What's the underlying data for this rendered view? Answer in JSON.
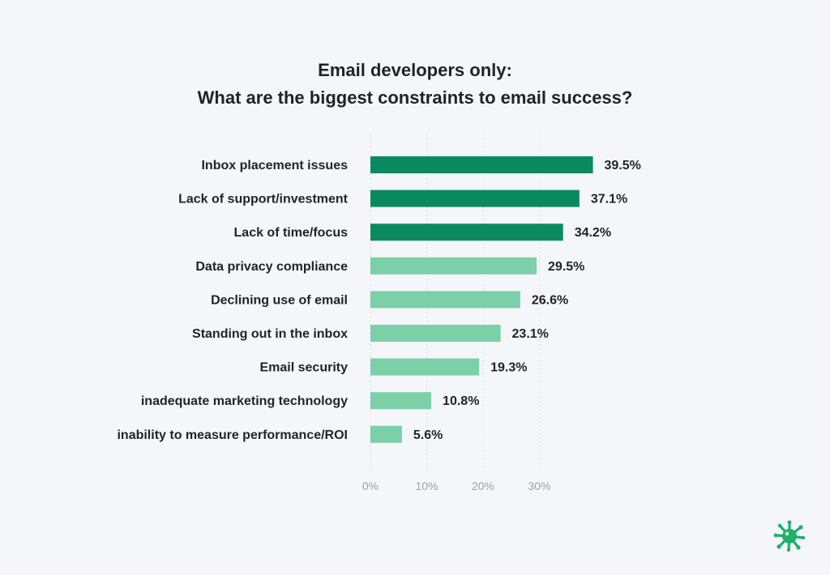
{
  "title_line1": "Email developers only:",
  "title_line2": "What are the biggest constraints to email success?",
  "colors": {
    "highlight": "#0b8a60",
    "normal": "#7bd0a7",
    "logo": "#1fb06a"
  },
  "icons": {
    "logo": "splat-logo-icon"
  },
  "chart_data": {
    "type": "bar",
    "orientation": "horizontal",
    "categories": [
      "Inbox placement issues",
      "Lack of support/investment",
      "Lack of time/focus",
      "Data privacy compliance",
      "Declining use of email",
      "Standing out in the inbox",
      "Email security",
      "inadequate marketing technology",
      "inability to measure performance/ROI"
    ],
    "values": [
      39.5,
      37.1,
      34.2,
      29.5,
      26.6,
      23.1,
      19.3,
      10.8,
      5.6
    ],
    "value_labels": [
      "39.5%",
      "37.1%",
      "34.2%",
      "29.5%",
      "26.6%",
      "23.1%",
      "19.3%",
      "10.8%",
      "5.6%"
    ],
    "highlighted": [
      true,
      true,
      true,
      false,
      false,
      false,
      false,
      false,
      false
    ],
    "xticks": [
      0,
      10,
      20,
      30
    ],
    "xtick_labels": [
      "0%",
      "10%",
      "20%",
      "30%"
    ],
    "xlim": [
      0,
      40
    ],
    "grid": true
  }
}
